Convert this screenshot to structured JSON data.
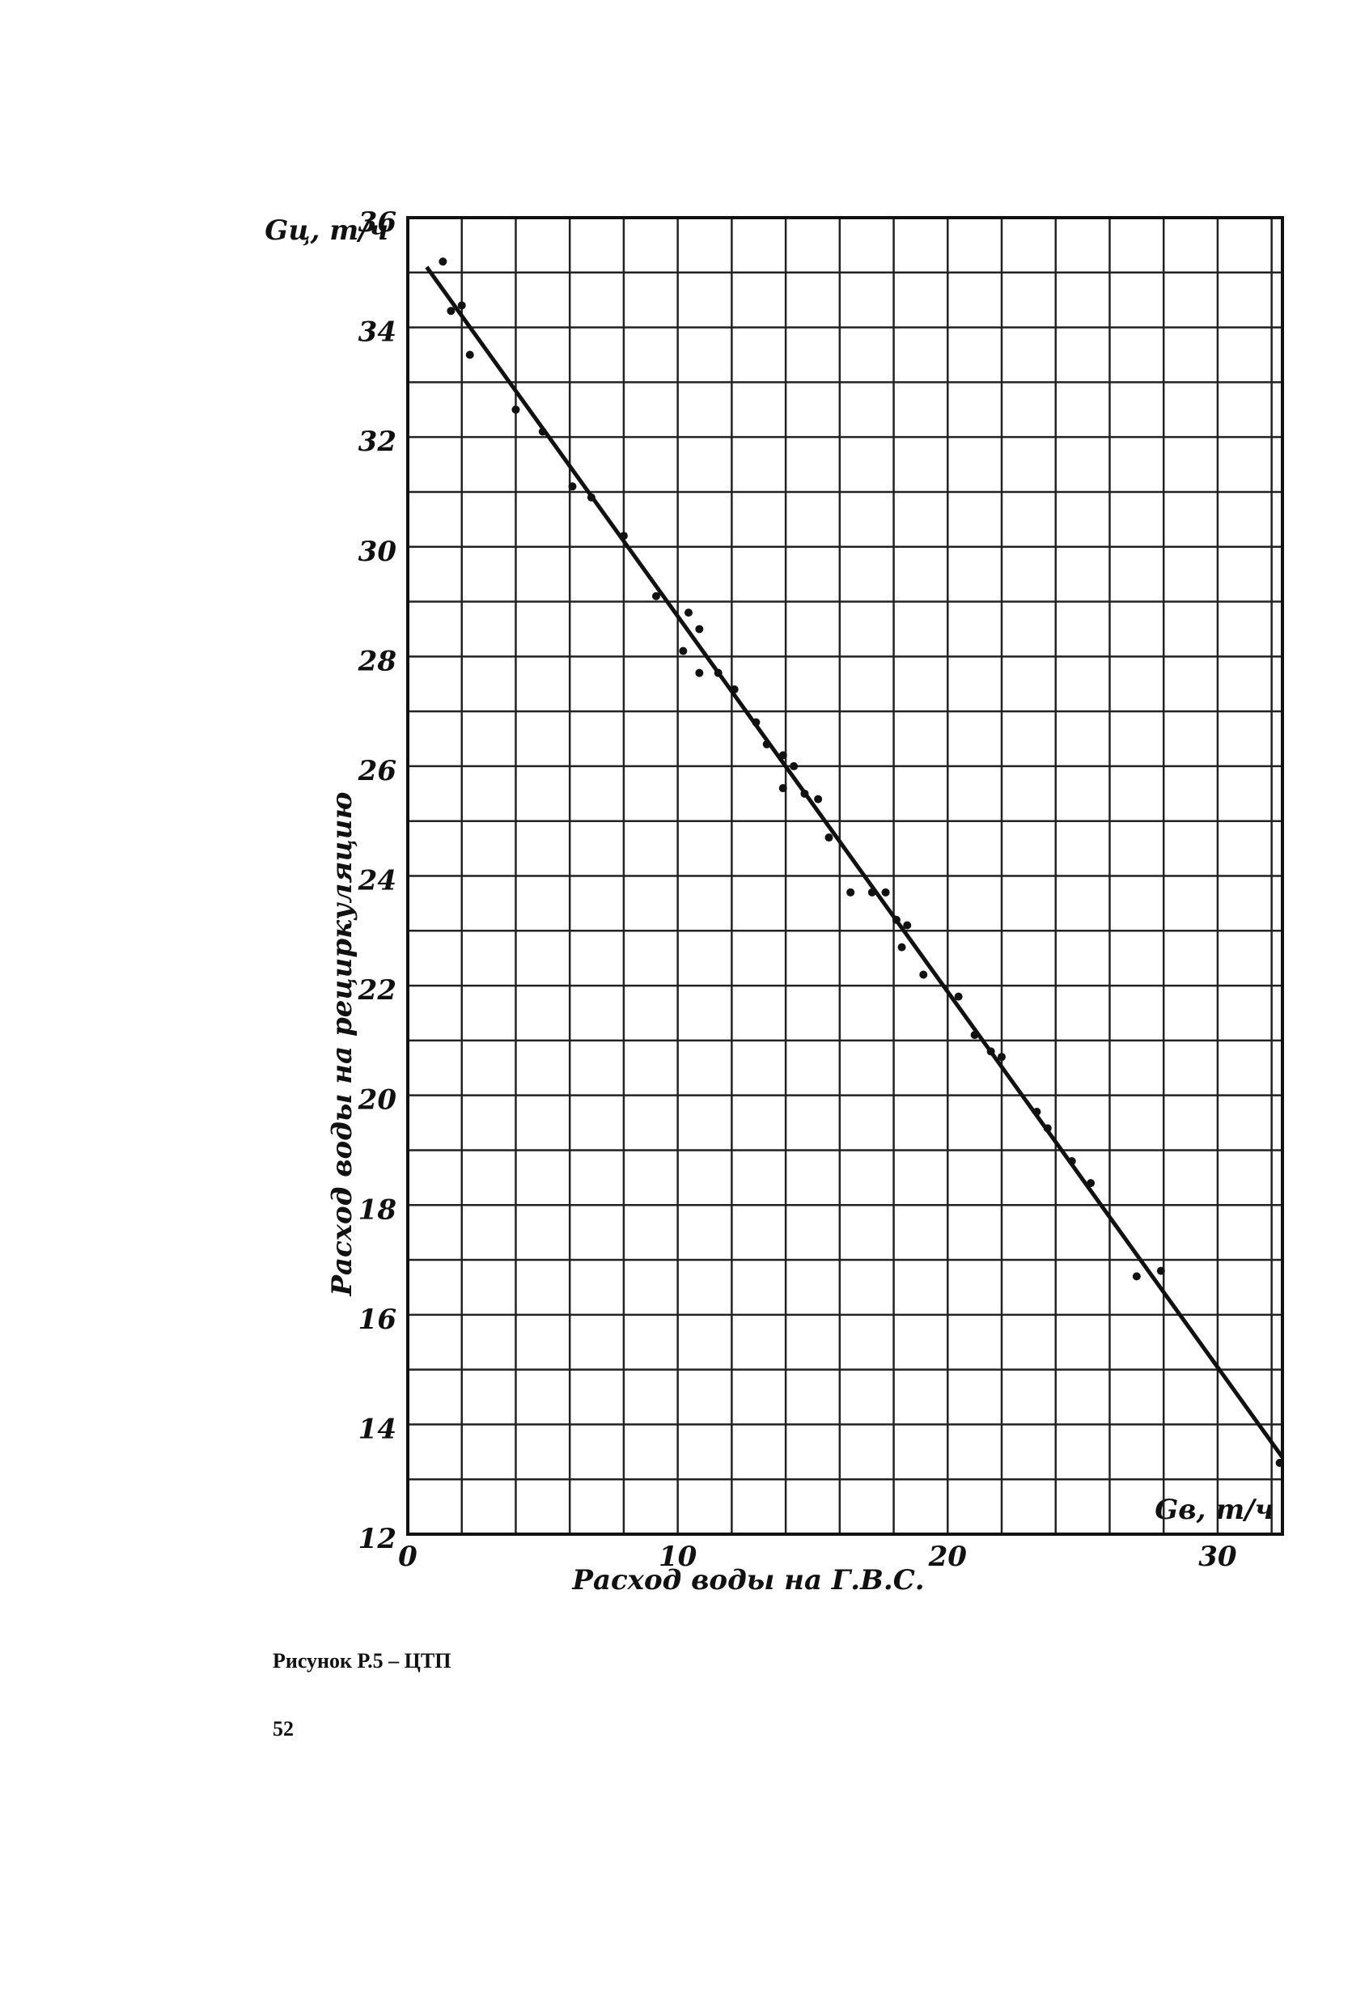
{
  "chart_data": {
    "type": "scatter",
    "y_axis_label": "Gц, т/ч",
    "x_axis_label": "Gв, т/ч",
    "y_title": "Расход воды на рециркуляцию",
    "x_title": "Расход воды на Г.В.С.",
    "xlim": [
      0,
      32.4
    ],
    "ylim": [
      12,
      36
    ],
    "xticks": [
      0,
      10,
      20,
      30
    ],
    "yticks": [
      12,
      14,
      16,
      18,
      20,
      22,
      24,
      26,
      28,
      30,
      32,
      34,
      36
    ],
    "grid_x": [
      0,
      2,
      4,
      6,
      8,
      10,
      12,
      14,
      16,
      18,
      20,
      22,
      24,
      26,
      28,
      30,
      32
    ],
    "grid_y": [
      12,
      13,
      14,
      15,
      16,
      17,
      18,
      19,
      20,
      21,
      22,
      23,
      24,
      25,
      26,
      27,
      28,
      29,
      30,
      31,
      32,
      33,
      34,
      35,
      36
    ],
    "color": "#111111",
    "x": [
      1.3,
      1.6,
      2.0,
      2.3,
      4.0,
      5.0,
      6.1,
      6.8,
      8.0,
      9.2,
      10.4,
      10.8,
      10.2,
      10.8,
      11.5,
      12.1,
      12.9,
      13.3,
      13.9,
      14.3,
      13.9,
      14.7,
      15.2,
      15.6,
      16.4,
      17.2,
      17.7,
      18.1,
      18.3,
      18.5,
      19.1,
      20.4,
      21.0,
      21.6,
      22.0,
      23.3,
      23.7,
      24.6,
      25.3,
      27.0,
      27.9,
      32.3
    ],
    "values": [
      35.2,
      34.3,
      34.4,
      33.5,
      32.5,
      32.1,
      31.1,
      30.9,
      30.2,
      29.1,
      28.8,
      28.5,
      28.1,
      27.7,
      27.7,
      27.4,
      26.8,
      26.4,
      26.2,
      26.0,
      25.6,
      25.5,
      25.4,
      24.7,
      23.7,
      23.7,
      23.7,
      23.2,
      22.7,
      23.1,
      22.2,
      21.8,
      21.1,
      20.8,
      20.7,
      19.7,
      19.4,
      18.8,
      18.4,
      16.7,
      16.8,
      13.3
    ],
    "fit_line": {
      "x": [
        0.7,
        32.4
      ],
      "y": [
        35.1,
        13.4
      ]
    }
  },
  "caption": "Рисунок Р.5 – ЦТП",
  "page_number": "52"
}
